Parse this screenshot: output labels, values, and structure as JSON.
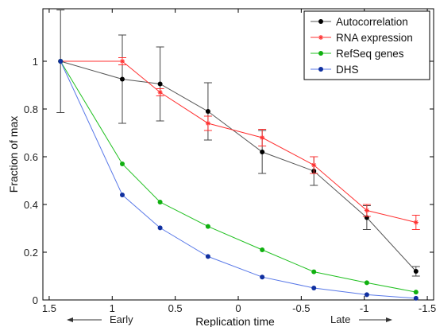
{
  "chart_data": {
    "type": "line",
    "title": "",
    "xlabel": "Replication time",
    "ylabel": "Fraction of max",
    "xlim": [
      1.55,
      -1.55
    ],
    "ylim": [
      0,
      1.22
    ],
    "x_reversed": true,
    "grid": false,
    "legend_position": "top-right",
    "x_ticks": [
      1.5,
      1,
      0.5,
      0,
      -0.5,
      -1,
      -1.5
    ],
    "x_tick_labels": [
      "1.5",
      "1",
      "0.5",
      "0",
      "-0.5",
      "-1",
      "-1.5"
    ],
    "y_ticks": [
      0,
      0.2,
      0.4,
      0.6,
      0.8,
      1
    ],
    "y_tick_labels": [
      "0",
      "0.2",
      "0.4",
      "0.6",
      "0.8",
      "1"
    ],
    "x": [
      1.41,
      0.92,
      0.62,
      0.24,
      -0.19,
      -0.6,
      -1.02,
      -1.41
    ],
    "annotations": [
      {
        "text": "Early",
        "arrow": "left"
      },
      {
        "text": "Late",
        "arrow": "right"
      }
    ],
    "series": [
      {
        "name": "Autocorrelation",
        "color": "#000000",
        "line_color": "#555555",
        "marker": "dot",
        "values": [
          1.0,
          0.925,
          0.905,
          0.79,
          0.62,
          0.54,
          0.345,
          0.12
        ],
        "err": [
          0.215,
          0.185,
          0.155,
          0.12,
          0.09,
          0.06,
          0.05,
          0.02
        ]
      },
      {
        "name": "RNA expression",
        "color": "#ff3030",
        "line_color": "#ff3030",
        "marker": "star",
        "values": [
          1.0,
          1.0,
          0.87,
          0.74,
          0.68,
          0.565,
          0.375,
          0.325
        ],
        "err": [
          0.0,
          0.015,
          0.015,
          0.03,
          0.035,
          0.035,
          0.025,
          0.03
        ]
      },
      {
        "name": "RefSeq genes",
        "color": "#10b010",
        "line_color": "#20c020",
        "marker": "dot",
        "values": [
          1.0,
          0.57,
          0.41,
          0.308,
          0.21,
          0.118,
          0.072,
          0.033
        ]
      },
      {
        "name": "DHS",
        "color": "#1030a0",
        "line_color": "#5878e8",
        "marker": "dot",
        "values": [
          1.0,
          0.44,
          0.302,
          0.182,
          0.096,
          0.05,
          0.022,
          0.007
        ]
      }
    ]
  }
}
